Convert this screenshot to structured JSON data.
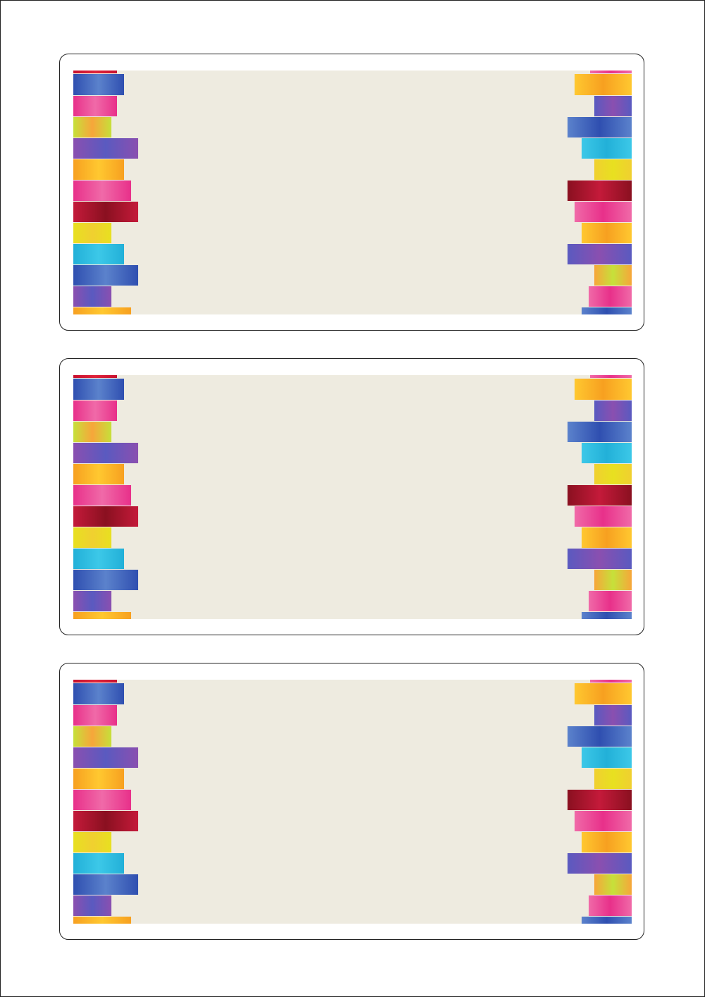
{
  "labels": [
    {
      "id": "label-1"
    },
    {
      "id": "label-2"
    },
    {
      "id": "label-3"
    }
  ],
  "colors": {
    "label_background": "#eeebe0",
    "border": "#222222",
    "palette": {
      "red": [
        "#c8102e",
        "#e0243a"
      ],
      "blue": [
        "#2f4fb0",
        "#5b82cc"
      ],
      "pink": [
        "#e8308a",
        "#f06aa8"
      ],
      "lime": [
        "#c6e03a",
        "#f7a63a"
      ],
      "purple": [
        "#8a4fb0",
        "#5a5ac0"
      ],
      "orange": [
        "#f7a020",
        "#ffc830"
      ],
      "darkred": [
        "#c41a3a",
        "#8a1020"
      ],
      "yellow": [
        "#e8e020",
        "#f0d030"
      ],
      "cyan": [
        "#22b0d8",
        "#3cc8e8"
      ]
    }
  }
}
